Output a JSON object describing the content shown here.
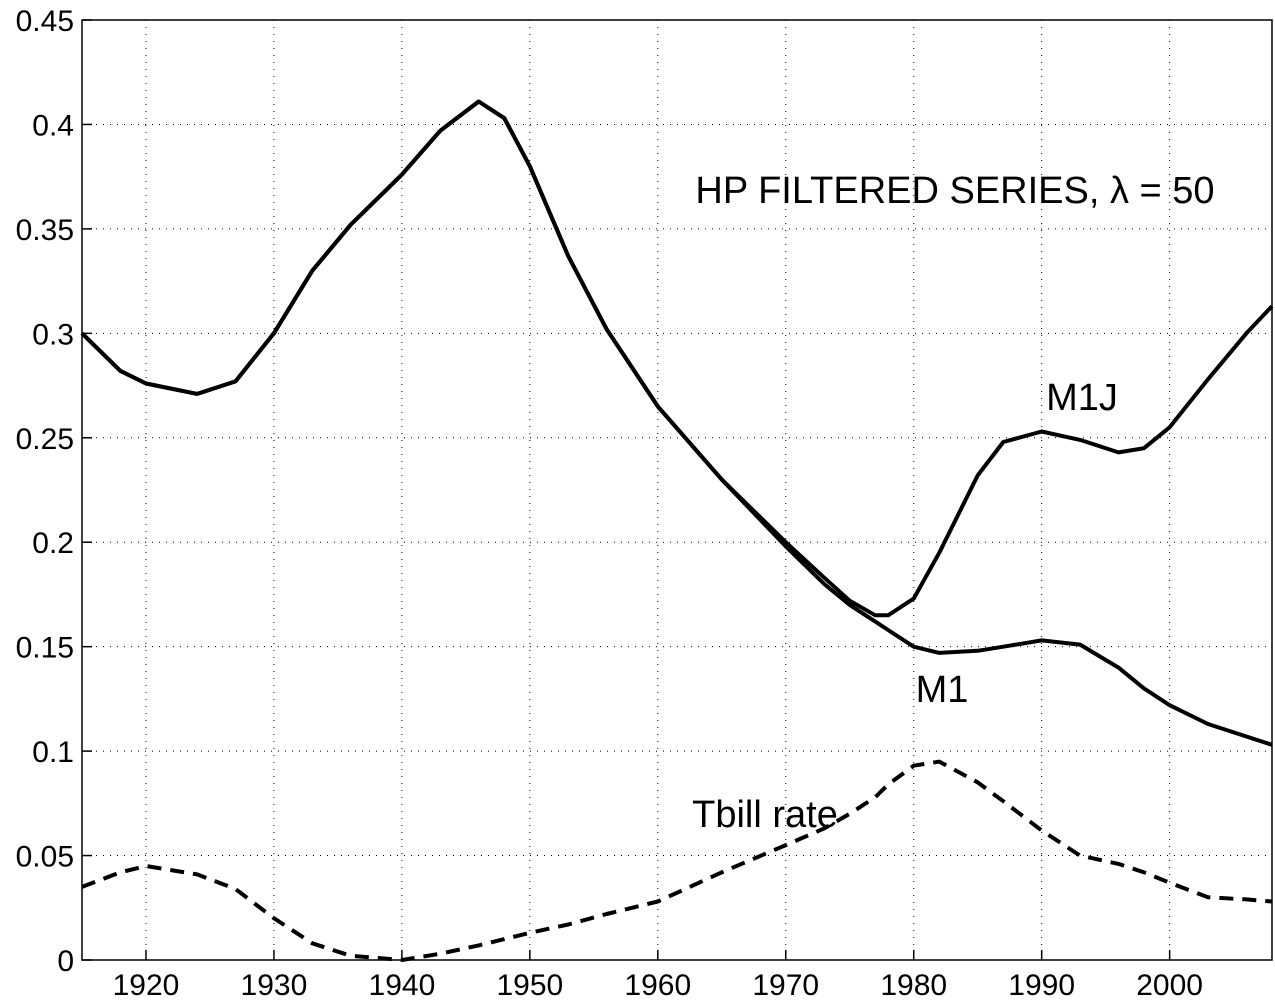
{
  "chart_data": {
    "type": "line",
    "title": "HP FILTERED SERIES, λ = 50",
    "x": [
      1915,
      1918,
      1920,
      1924,
      1927,
      1930,
      1933,
      1936,
      1940,
      1943,
      1946,
      1948,
      1950,
      1953,
      1956,
      1960,
      1965,
      1970,
      1973,
      1975,
      1977,
      1978,
      1980,
      1982,
      1985,
      1987,
      1990,
      1993,
      1996,
      1998,
      2000,
      2003,
      2006,
      2008
    ],
    "series": [
      {
        "name": "M1J",
        "color": "#000000",
        "line_style": "solid",
        "values": [
          0.3,
          0.282,
          0.276,
          0.271,
          0.277,
          0.3,
          0.33,
          0.352,
          0.376,
          0.397,
          0.411,
          0.403,
          0.38,
          0.337,
          0.302,
          0.265,
          0.23,
          0.2,
          0.183,
          0.172,
          0.165,
          0.165,
          0.173,
          0.195,
          0.232,
          0.248,
          0.253,
          0.249,
          0.243,
          0.245,
          0.255,
          0.278,
          0.3,
          0.313
        ]
      },
      {
        "name": "M1",
        "color": "#000000",
        "line_style": "solid",
        "values": [
          0.3,
          0.282,
          0.276,
          0.271,
          0.277,
          0.3,
          0.33,
          0.352,
          0.376,
          0.397,
          0.411,
          0.403,
          0.38,
          0.337,
          0.302,
          0.265,
          0.23,
          0.198,
          0.18,
          0.17,
          0.162,
          0.158,
          0.15,
          0.147,
          0.148,
          0.15,
          0.153,
          0.151,
          0.14,
          0.13,
          0.122,
          0.113,
          0.107,
          0.103
        ]
      },
      {
        "name": "Tbill rate",
        "color": "#000000",
        "line_style": "dashed",
        "values": [
          0.035,
          0.042,
          0.045,
          0.041,
          0.034,
          0.02,
          0.008,
          0.002,
          0.0,
          0.003,
          0.007,
          0.01,
          0.013,
          0.017,
          0.022,
          0.028,
          0.042,
          0.055,
          0.063,
          0.07,
          0.078,
          0.084,
          0.093,
          0.095,
          0.085,
          0.076,
          0.062,
          0.05,
          0.046,
          0.042,
          0.037,
          0.03,
          0.029,
          0.028
        ]
      }
    ],
    "xlim": [
      1915,
      2008
    ],
    "xticks": [
      1920,
      1930,
      1940,
      1950,
      1960,
      1970,
      1980,
      1990,
      2000
    ],
    "ylim": [
      0,
      0.45
    ],
    "yticks": [
      0,
      0.05,
      0.1,
      0.15,
      0.2,
      0.25,
      0.3,
      0.35,
      0.4,
      0.45
    ],
    "grid": true
  }
}
